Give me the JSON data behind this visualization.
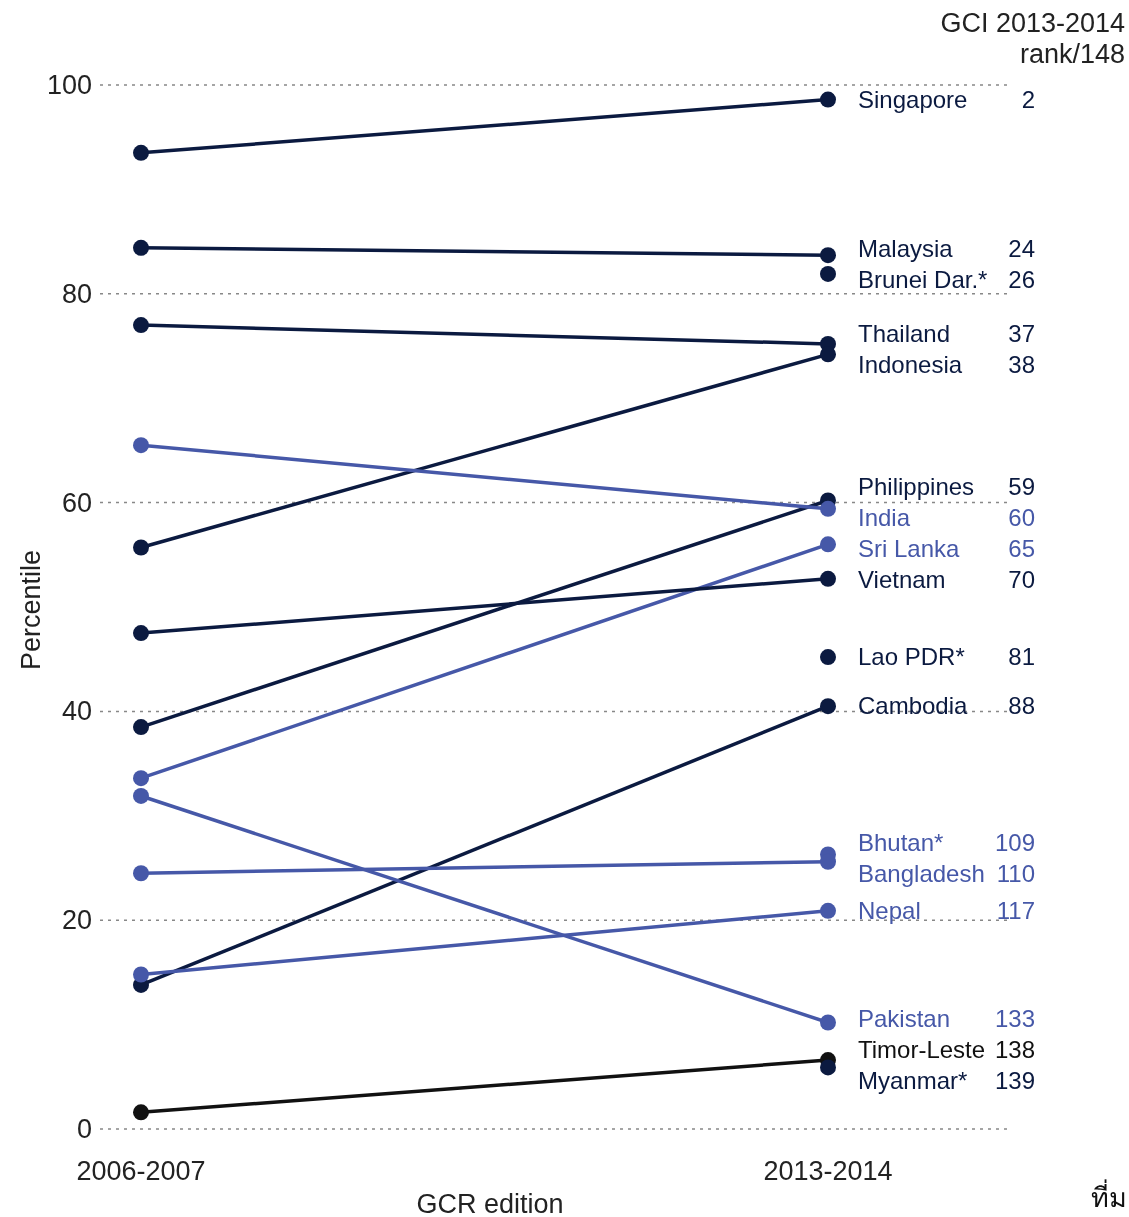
{
  "chart_data": {
    "type": "line",
    "xlabel": "GCR edition",
    "ylabel": "Percentile",
    "legend_title": "GCI 2013-2014 rank/148",
    "categories": [
      "2006-2007",
      "2013-2014"
    ],
    "ylim": [
      0,
      100
    ],
    "yticks": [
      0,
      20,
      40,
      60,
      80,
      100
    ],
    "grid": "y",
    "marker": "circle",
    "series": [
      {
        "name": "Singapore",
        "color": "#0b1a40",
        "values": [
          93.5,
          98.6
        ]
      },
      {
        "name": "Malaysia",
        "color": "#0b1a40",
        "values": [
          84.4,
          83.7
        ]
      },
      {
        "name": "Brunei Dar.*",
        "color": "#0b1a40",
        "values": [
          null,
          81.9
        ]
      },
      {
        "name": "Thailand",
        "color": "#0b1a40",
        "values": [
          77.0,
          75.2
        ]
      },
      {
        "name": "Indonesia",
        "color": "#0b1a40",
        "values": [
          55.7,
          74.2
        ]
      },
      {
        "name": "Philippines",
        "color": "#0b1a40",
        "values": [
          38.5,
          60.2
        ]
      },
      {
        "name": "India",
        "color": "#4658a8",
        "values": [
          65.5,
          59.4
        ]
      },
      {
        "name": "Sri Lanka",
        "color": "#4658a8",
        "values": [
          33.6,
          56.0
        ]
      },
      {
        "name": "Vietnam",
        "color": "#0b1a40",
        "values": [
          47.5,
          52.7
        ]
      },
      {
        "name": "Lao PDR*",
        "color": "#0b1a40",
        "values": [
          null,
          45.2
        ]
      },
      {
        "name": "Cambodia",
        "color": "#0b1a40",
        "values": [
          13.8,
          40.5
        ]
      },
      {
        "name": "Bhutan*",
        "color": "#4658a8",
        "values": [
          null,
          26.3
        ]
      },
      {
        "name": "Bangladesh",
        "color": "#4658a8",
        "values": [
          24.5,
          25.6
        ]
      },
      {
        "name": "Nepal",
        "color": "#4658a8",
        "values": [
          14.8,
          20.9
        ]
      },
      {
        "name": "Pakistan",
        "color": "#4658a8",
        "values": [
          31.9,
          10.2
        ]
      },
      {
        "name": "Timor-Leste",
        "color": "#111111",
        "values": [
          1.6,
          6.6
        ]
      },
      {
        "name": "Myanmar*",
        "color": "#0b1a40",
        "values": [
          null,
          5.9
        ]
      }
    ],
    "annotations": [
      "2",
      "24",
      "26",
      "37",
      "38",
      "59",
      "60",
      "65",
      "70",
      "81",
      "88",
      "109",
      "110",
      "117",
      "133",
      "138",
      "139",
      "ที่ม"
    ]
  }
}
